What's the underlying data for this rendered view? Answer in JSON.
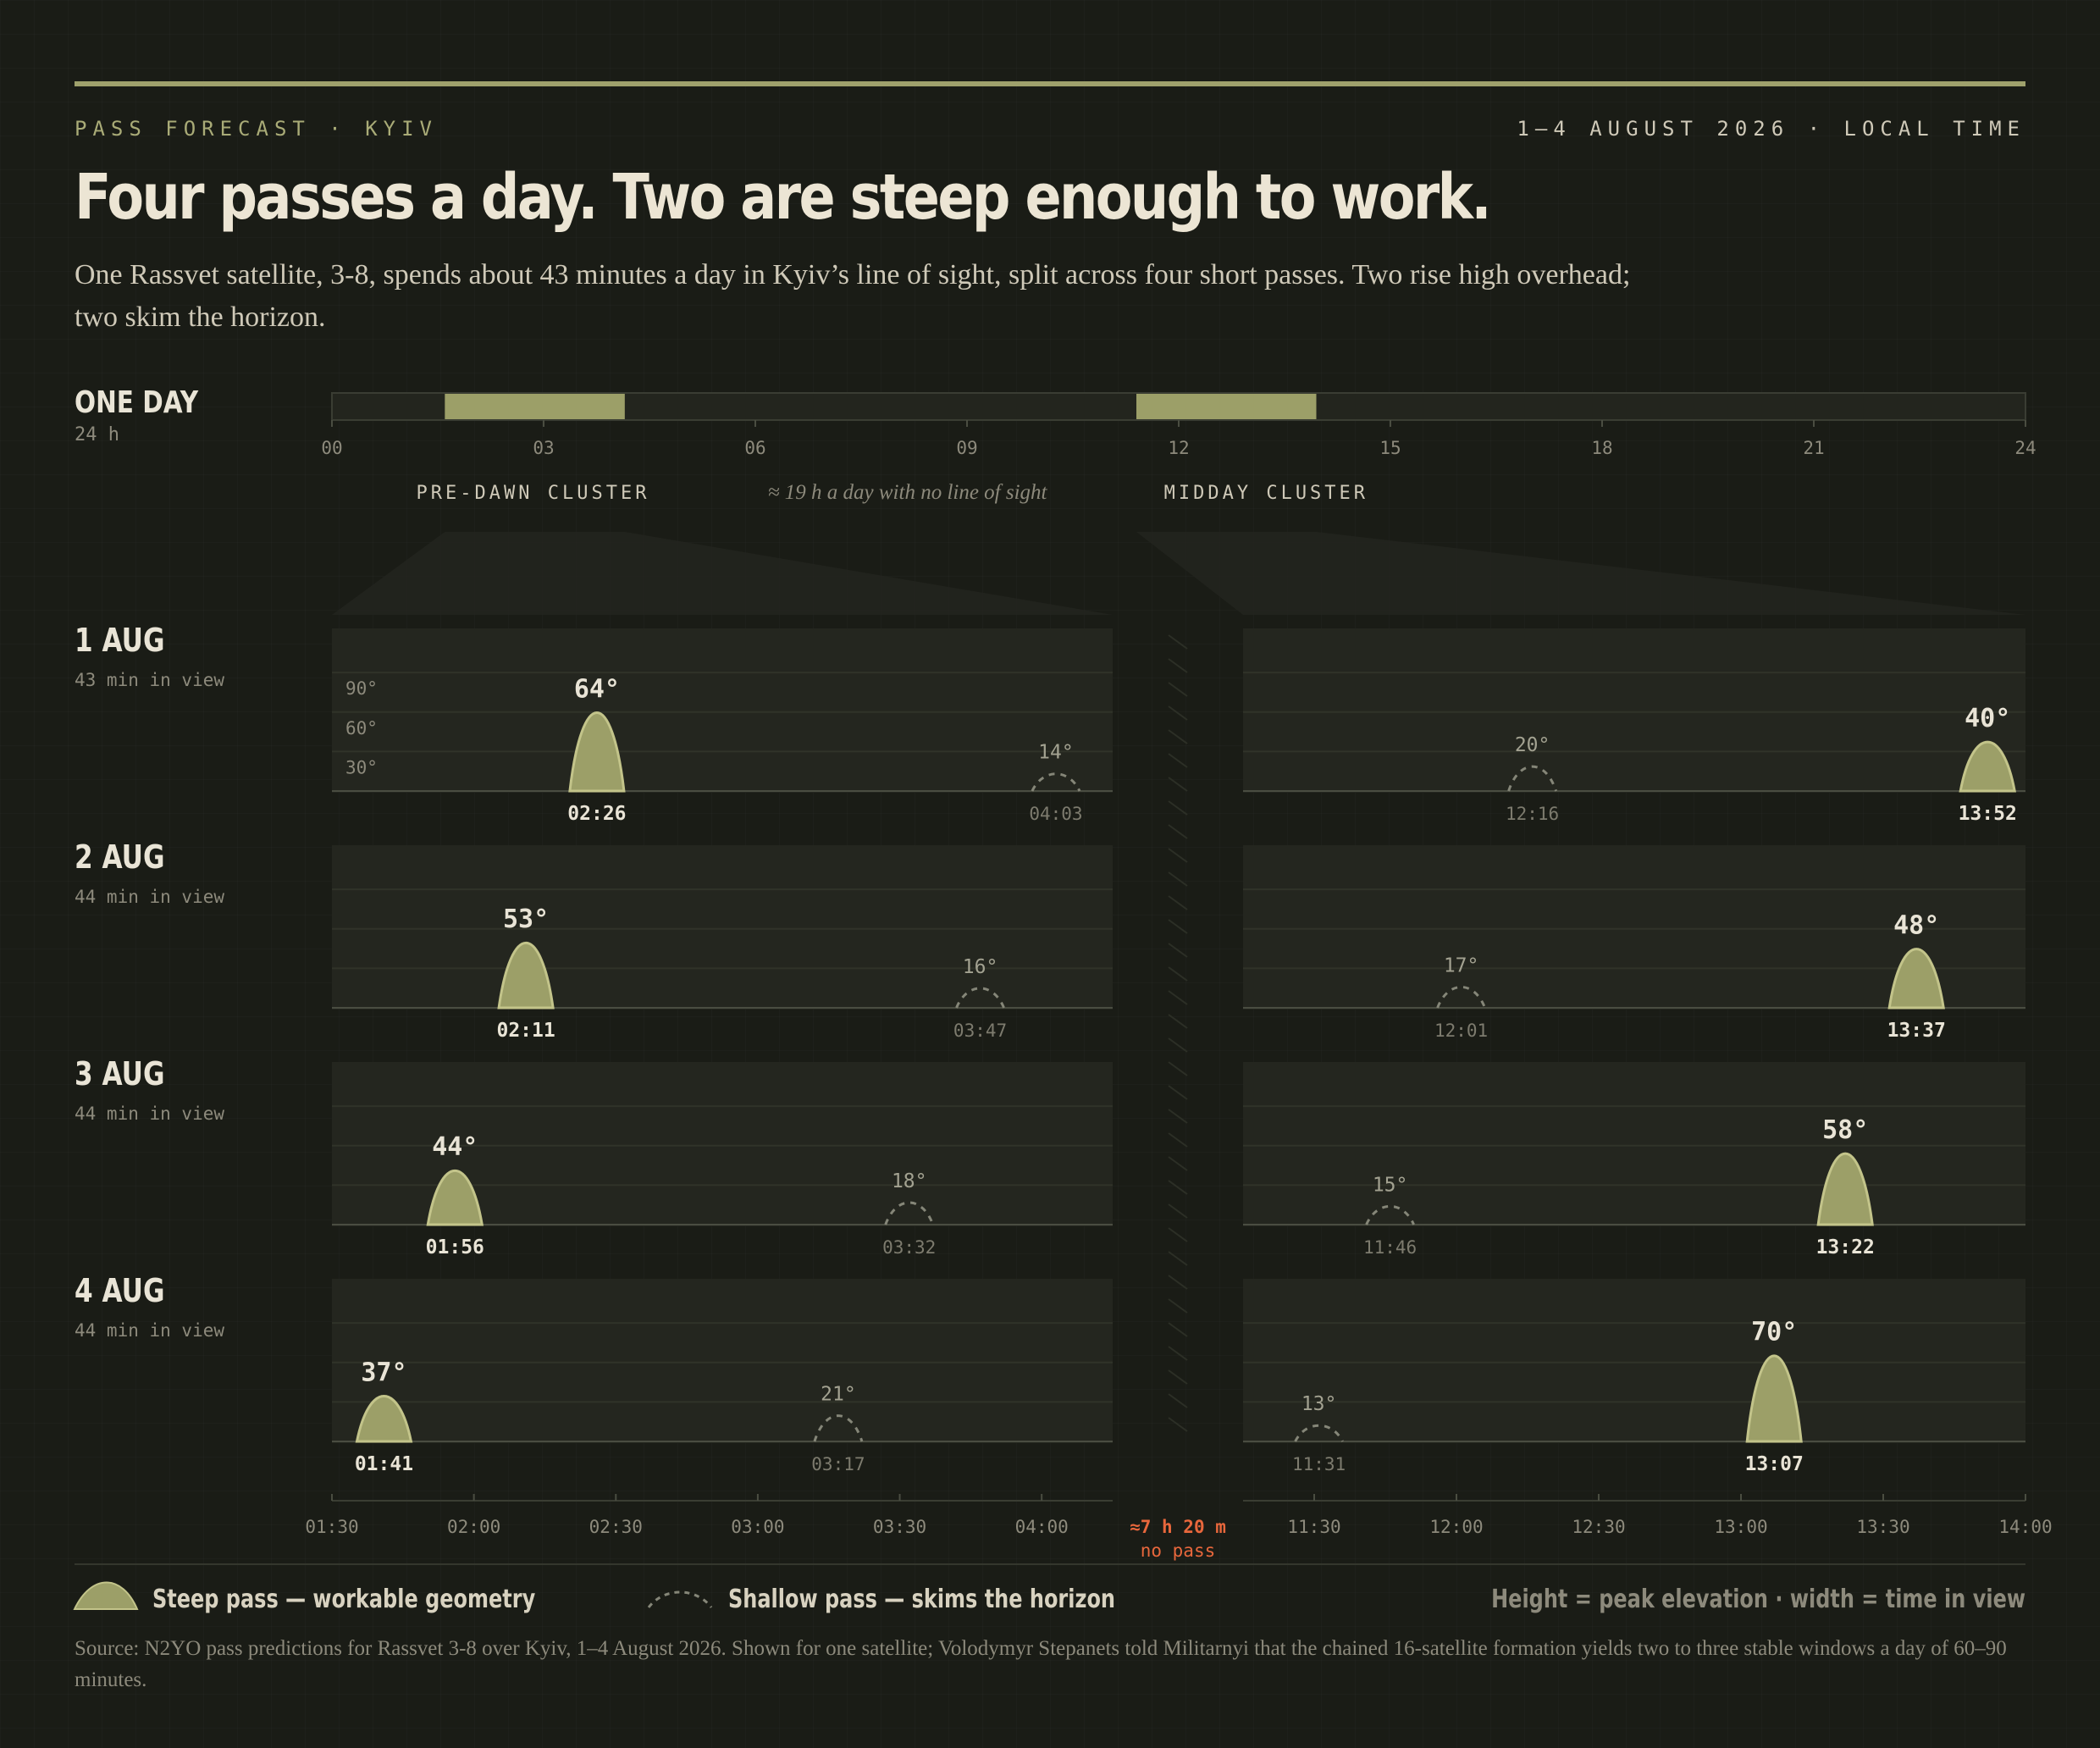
{
  "header": {
    "kicker_left": "PASS FORECAST · KYIV",
    "kicker_right": "1–4 AUGUST 2026 · LOCAL TIME",
    "headline": "Four passes a day. Two are steep enough to work.",
    "deck": "One Rassvet satellite, 3-8, spends about 43 minutes a day in Kyiv’s line of sight, split across four short passes. Two rise high overhead; two skim the horizon."
  },
  "colors": {
    "background": "#1a1c16",
    "steep_fill": "#9c9f68",
    "steep_stroke": "#c3c48a",
    "shallow": "#858678",
    "gap_accent": "#e8673c",
    "text": "#e9e4d6",
    "muted": "#8d8a7c"
  },
  "chart_data": [
    {
      "type": "bar",
      "title": "ONE DAY",
      "subtitle": "24 h",
      "xlim": [
        0,
        24
      ],
      "x_ticks": [
        "00",
        "03",
        "06",
        "09",
        "12",
        "15",
        "18",
        "21",
        "24"
      ],
      "bands": [
        {
          "start_hour": 1.6,
          "end_hour": 4.15
        },
        {
          "start_hour": 11.4,
          "end_hour": 13.95
        }
      ],
      "annotations": [
        {
          "text": "PRE-DAWN CLUSTER",
          "hour": 2.85
        },
        {
          "text": "≈ 19 h a day with no line of sight",
          "hour": 7.7
        },
        {
          "text": "MIDDAY CLUSTER",
          "hour": 12.7
        }
      ]
    },
    {
      "type": "area",
      "ylabel_ticks": [
        "90°",
        "60°",
        "30°"
      ],
      "ylim": [
        0,
        90
      ],
      "x_windows": [
        {
          "start": "01:30",
          "end": "04:15",
          "ticks": [
            "01:30",
            "02:00",
            "02:30",
            "03:00",
            "03:30",
            "04:00"
          ]
        },
        {
          "start": "11:15",
          "end": "14:00",
          "ticks": [
            "11:30",
            "12:00",
            "12:30",
            "13:00",
            "13:30",
            "14:00"
          ]
        }
      ],
      "gap_label": [
        "≈7 h 20 m",
        "no pass"
      ],
      "days": [
        {
          "label": "1 AUG",
          "sub": "43 min in view",
          "passes": [
            {
              "time": "02:26",
              "peak": 64,
              "peak_label": "64°",
              "kind": "steep"
            },
            {
              "time": "04:03",
              "peak": 14,
              "peak_label": "14°",
              "kind": "shallow"
            },
            {
              "time": "12:16",
              "peak": 20,
              "peak_label": "20°",
              "kind": "shallow"
            },
            {
              "time": "13:52",
              "peak": 40,
              "peak_label": "40°",
              "kind": "steep"
            }
          ]
        },
        {
          "label": "2 AUG",
          "sub": "44 min in view",
          "passes": [
            {
              "time": "02:11",
              "peak": 53,
              "peak_label": "53°",
              "kind": "steep"
            },
            {
              "time": "03:47",
              "peak": 16,
              "peak_label": "16°",
              "kind": "shallow"
            },
            {
              "time": "12:01",
              "peak": 17,
              "peak_label": "17°",
              "kind": "shallow"
            },
            {
              "time": "13:37",
              "peak": 48,
              "peak_label": "48°",
              "kind": "steep"
            }
          ]
        },
        {
          "label": "3 AUG",
          "sub": "44 min in view",
          "passes": [
            {
              "time": "01:56",
              "peak": 44,
              "peak_label": "44°",
              "kind": "steep"
            },
            {
              "time": "03:32",
              "peak": 18,
              "peak_label": "18°",
              "kind": "shallow"
            },
            {
              "time": "11:46",
              "peak": 15,
              "peak_label": "15°",
              "kind": "shallow"
            },
            {
              "time": "13:22",
              "peak": 58,
              "peak_label": "58°",
              "kind": "steep"
            }
          ]
        },
        {
          "label": "4 AUG",
          "sub": "44 min in view",
          "passes": [
            {
              "time": "01:41",
              "peak": 37,
              "peak_label": "37°",
              "kind": "steep"
            },
            {
              "time": "03:17",
              "peak": 21,
              "peak_label": "21°",
              "kind": "shallow"
            },
            {
              "time": "11:31",
              "peak": 13,
              "peak_label": "13°",
              "kind": "shallow"
            },
            {
              "time": "13:07",
              "peak": 70,
              "peak_label": "70°",
              "kind": "steep"
            }
          ]
        }
      ]
    }
  ],
  "legend": {
    "steep": "Steep pass — workable geometry",
    "shallow": "Shallow pass — skims the horizon",
    "note": "Height = peak elevation · width = time in view"
  },
  "footnote": "Source: N2YO pass predictions for Rassvet 3-8 over Kyiv, 1–4 August 2026. Shown for one satellite; Volodymyr Stepanets told Militarnyi that the chained 16-satellite formation yields two to three stable windows a day of 60–90 minutes."
}
